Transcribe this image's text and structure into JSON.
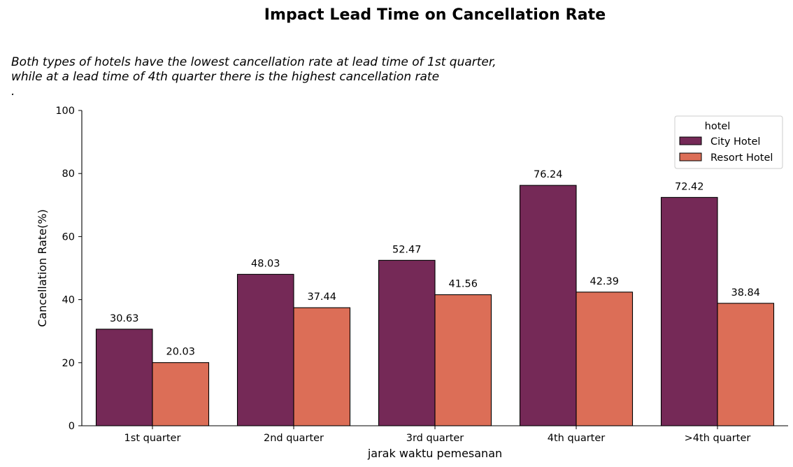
{
  "chart_data": {
    "type": "bar",
    "title": "Impact Lead Time on Cancellation Rate",
    "annotation_lines": [
      "Both types of hotels have the lowest cancellation rate at lead time of 1st quarter,",
      "while at a lead time of 4th quarter there is the highest cancellation rate",
      "."
    ],
    "xlabel": "jarak waktu pemesanan",
    "ylabel": "Cancellation Rate(%)",
    "ylim": [
      0,
      100
    ],
    "yticks": [
      0,
      20,
      40,
      60,
      80,
      100
    ],
    "categories": [
      "1st quarter",
      "2nd quarter",
      "3rd quarter",
      "4th quarter",
      ">4th quarter"
    ],
    "series": [
      {
        "name": "City Hotel",
        "color": "#752957",
        "values": [
          30.63,
          48.03,
          52.47,
          76.24,
          72.42
        ]
      },
      {
        "name": "Resort Hotel",
        "color": "#dc6e57",
        "values": [
          20.03,
          37.44,
          41.56,
          42.39,
          38.84
        ]
      }
    ],
    "legend": {
      "title": "hotel",
      "position": "top-right"
    },
    "grid": false
  }
}
